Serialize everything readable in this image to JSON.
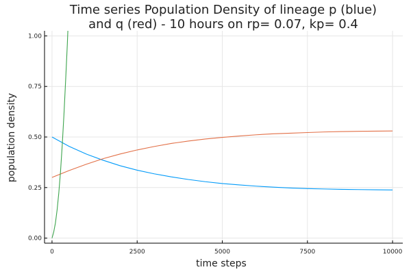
{
  "chart_data": {
    "type": "line",
    "title": [
      "Time series Population Density of lineage p (blue)",
      "and q (red) - 10 hours on rp= 0.07, kp= 0.4"
    ],
    "xlabel": "time steps",
    "ylabel": "population density",
    "xlim": [
      -220,
      10300
    ],
    "ylim": [
      -0.025,
      1.025
    ],
    "x_ticks": [
      0,
      2500,
      5000,
      7500,
      10000
    ],
    "x_tick_labels": [
      "0",
      "2500",
      "5000",
      "7500",
      "10000"
    ],
    "y_ticks": [
      0,
      0.25,
      0.5,
      0.75,
      1.0
    ],
    "y_tick_labels": [
      "0.00",
      "0.25",
      "0.50",
      "0.75",
      "1.00"
    ],
    "grid": true,
    "legend": "none",
    "series": [
      {
        "color": "#009AF9",
        "x": [
          0,
          500,
          1000,
          1500,
          2000,
          2500,
          3000,
          3500,
          4000,
          4500,
          5000,
          5500,
          6000,
          6500,
          7000,
          7500,
          8000,
          8500,
          9000,
          9500,
          10000
        ],
        "values": [
          0.5,
          0.454,
          0.416,
          0.385,
          0.358,
          0.336,
          0.318,
          0.303,
          0.29,
          0.279,
          0.27,
          0.263,
          0.257,
          0.252,
          0.248,
          0.245,
          0.243,
          0.241,
          0.24,
          0.239,
          0.238
        ]
      },
      {
        "color": "#E26F46",
        "x": [
          0,
          500,
          1000,
          1500,
          2000,
          2500,
          3000,
          3500,
          4000,
          4500,
          5000,
          5500,
          6000,
          6500,
          7000,
          7500,
          8000,
          8500,
          9000,
          9500,
          10000
        ],
        "values": [
          0.3,
          0.334,
          0.365,
          0.393,
          0.416,
          0.436,
          0.453,
          0.468,
          0.48,
          0.49,
          0.498,
          0.505,
          0.511,
          0.516,
          0.519,
          0.522,
          0.525,
          0.527,
          0.528,
          0.529,
          0.53
        ]
      },
      {
        "color": "#3DA44D",
        "x": [
          0,
          50,
          100,
          150,
          200,
          250,
          300,
          350,
          400,
          450,
          500
        ],
        "values": [
          0.0,
          0.03,
          0.075,
          0.14,
          0.225,
          0.33,
          0.46,
          0.61,
          0.78,
          0.96,
          1.17
        ]
      }
    ]
  }
}
